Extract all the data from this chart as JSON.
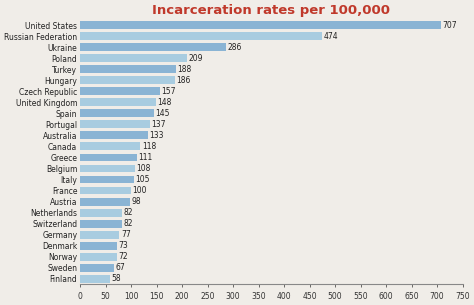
{
  "title": "Incarceration rates per 100,000",
  "title_color": "#c0392b",
  "categories": [
    "United States",
    "Russian Federation",
    "Ukraine",
    "Poland",
    "Turkey",
    "Hungary",
    "Czech Republic",
    "United Kingdom",
    "Spain",
    "Portugal",
    "Australia",
    "Canada",
    "Greece",
    "Belgium",
    "Italy",
    "France",
    "Austria",
    "Netherlands",
    "Switzerland",
    "Germany",
    "Denmark",
    "Norway",
    "Sweden",
    "Finland"
  ],
  "values": [
    707,
    474,
    286,
    209,
    188,
    186,
    157,
    148,
    145,
    137,
    133,
    118,
    111,
    108,
    105,
    100,
    98,
    82,
    82,
    77,
    73,
    72,
    67,
    58
  ],
  "bar_color_main": "#8ab4d4",
  "bar_color_alt": "#a8cce0",
  "xlim": [
    0,
    750
  ],
  "xticks": [
    0,
    50,
    100,
    150,
    200,
    250,
    300,
    350,
    400,
    450,
    500,
    550,
    600,
    650,
    700,
    750
  ],
  "background_color": "#f0ede8",
  "value_fontsize": 5.5,
  "label_fontsize": 5.5,
  "title_fontsize": 9.5
}
